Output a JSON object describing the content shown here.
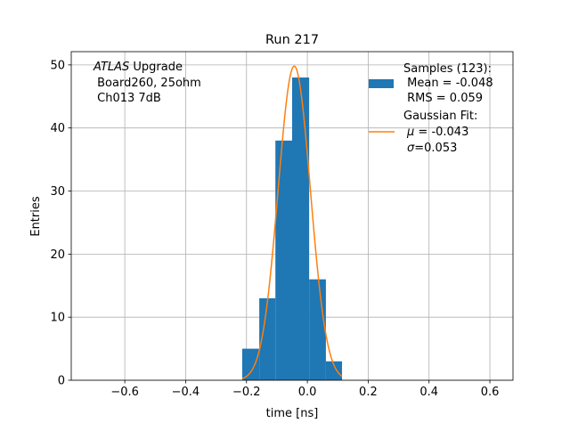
{
  "chart_data": {
    "type": "bar",
    "title": "Run 217",
    "xlabel": "time [ns]",
    "ylabel": "Entries",
    "xlim": [
      -0.776,
      0.676
    ],
    "ylim": [
      0,
      52.1
    ],
    "grid": true,
    "xticks": [
      -0.6,
      -0.4,
      -0.2,
      0.0,
      0.2,
      0.4,
      0.6
    ],
    "xtick_labels": [
      "−0.6",
      "−0.4",
      "−0.2",
      "0.0",
      "0.2",
      "0.4",
      "0.6"
    ],
    "yticks": [
      0,
      10,
      20,
      30,
      40,
      50
    ],
    "ytick_labels": [
      "0",
      "10",
      "20",
      "30",
      "40",
      "50"
    ],
    "histogram": {
      "bin_edges": [
        -0.214,
        -0.158,
        -0.105,
        -0.05,
        0.006,
        0.061,
        0.114
      ],
      "counts": [
        5,
        13,
        38,
        48,
        16,
        3
      ],
      "color": "#1f77b4"
    },
    "gaussian_fit": {
      "mu": -0.043,
      "sigma": 0.053,
      "amplitude": 49.8,
      "x_range": [
        -0.214,
        0.114
      ],
      "color": "#ff7f0e"
    },
    "annotation": {
      "italic": "ATLAS",
      "line1_rest": " Upgrade",
      "line2": " Board260, 25ohm",
      "line3": " Ch013 7dB"
    },
    "legend": {
      "placement": "top-right",
      "samples": [
        "Samples (123):",
        " Mean = -0.048",
        " RMS = 0.059"
      ],
      "fit_title": "Gaussian Fit:",
      "fit_mu_symbol": "μ",
      "fit_mu_value": " = -0.043",
      "fit_sigma_symbol": "σ",
      "fit_sigma_value": "=0.053"
    }
  }
}
